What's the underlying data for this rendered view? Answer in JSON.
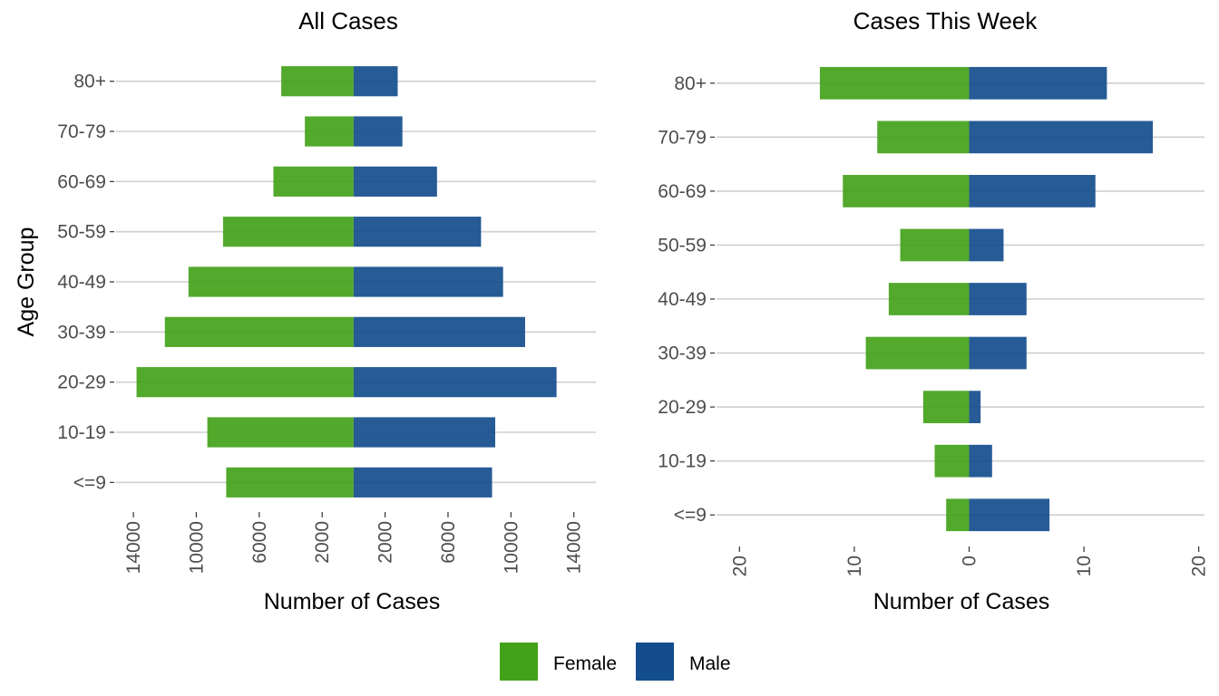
{
  "chart_data": [
    {
      "type": "bar",
      "orientation": "horizontal",
      "layout": "population-pyramid",
      "title": "All Cases",
      "xlabel": "Number of Cases",
      "ylabel": "Age Group",
      "categories": [
        "<=9",
        "10-19",
        "20-29",
        "30-39",
        "40-49",
        "50-59",
        "60-69",
        "70-79",
        "80+"
      ],
      "series": [
        {
          "name": "Female",
          "side": "left",
          "color": "#43a21a",
          "values": [
            8100,
            9300,
            13800,
            12000,
            10500,
            8300,
            5100,
            3100,
            4600
          ]
        },
        {
          "name": "Male",
          "side": "right",
          "color": "#144d8d",
          "values": [
            8800,
            9000,
            12900,
            10900,
            9500,
            8100,
            5300,
            3100,
            2800
          ]
        }
      ],
      "xlim": [
        -15100,
        15400
      ],
      "xticks": [
        -14000,
        -10000,
        -6000,
        -2000,
        2000,
        6000,
        10000,
        14000
      ],
      "xtick_labels": [
        "14000",
        "10000",
        "6000",
        "2000",
        "2000",
        "6000",
        "10000",
        "14000"
      ],
      "grid": "horizontal major"
    },
    {
      "type": "bar",
      "orientation": "horizontal",
      "layout": "population-pyramid",
      "title": "Cases This Week",
      "xlabel": "Number of Cases",
      "ylabel": "",
      "categories": [
        "<=9",
        "10-19",
        "20-29",
        "30-39",
        "40-49",
        "50-59",
        "60-69",
        "70-79",
        "80+"
      ],
      "series": [
        {
          "name": "Female",
          "side": "left",
          "color": "#43a21a",
          "values": [
            2,
            3,
            4,
            9,
            7,
            6,
            11,
            8,
            13
          ]
        },
        {
          "name": "Male",
          "side": "right",
          "color": "#144d8d",
          "values": [
            7,
            2,
            1,
            5,
            5,
            3,
            11,
            16,
            12
          ]
        }
      ],
      "xlim": [
        -22,
        20.5
      ],
      "xticks": [
        -20,
        -10,
        0,
        10,
        20
      ],
      "xtick_labels": [
        "20",
        "10",
        "0",
        "10",
        "20"
      ],
      "grid": "horizontal major"
    }
  ],
  "legend": {
    "placement": "bottom",
    "items": [
      {
        "label": "Female",
        "color": "#43a21a"
      },
      {
        "label": "Male",
        "color": "#144d8d"
      }
    ]
  }
}
